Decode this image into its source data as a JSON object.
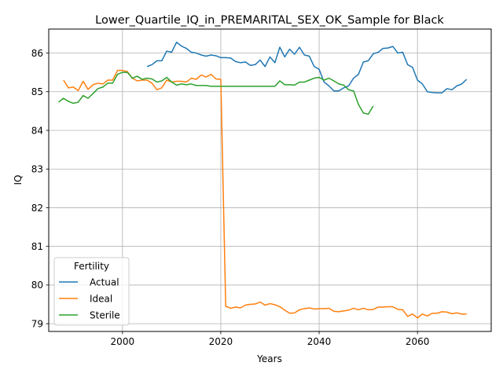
{
  "chart_data": {
    "type": "line",
    "title": "Lower_Quartile_IQ_in_PREMARITAL_SEX_OK_Sample for Black",
    "xlabel": "Years",
    "ylabel": "IQ",
    "xlim": [
      1985,
      2075
    ],
    "ylim": [
      78.8,
      86.62
    ],
    "xticks": [
      2000,
      2020,
      2040,
      2060
    ],
    "yticks": [
      79,
      80,
      81,
      82,
      83,
      84,
      85,
      86
    ],
    "grid": true,
    "legend": {
      "title": "Fertility",
      "placement": "lower left"
    },
    "series": [
      {
        "name": "Actual",
        "color": "#1f77b4",
        "x": [
          2005,
          2006,
          2007,
          2008,
          2009,
          2010,
          2011,
          2012,
          2013,
          2014,
          2015,
          2016,
          2017,
          2018,
          2019,
          2020,
          2021,
          2022,
          2023,
          2024,
          2025,
          2026,
          2027,
          2028,
          2029,
          2030,
          2031,
          2032,
          2033,
          2034,
          2035,
          2036,
          2037,
          2038,
          2039,
          2040,
          2041,
          2042,
          2043,
          2044,
          2045,
          2046,
          2047,
          2048,
          2049,
          2050,
          2051,
          2052,
          2053,
          2054,
          2055,
          2056,
          2057,
          2058,
          2059,
          2060,
          2061,
          2062,
          2063,
          2064,
          2065,
          2066,
          2067,
          2068,
          2069,
          2070
        ],
        "values": [
          85.65,
          85.7,
          85.8,
          85.8,
          86.05,
          86.02,
          86.28,
          86.18,
          86.12,
          86.02,
          86.0,
          85.95,
          85.92,
          85.95,
          85.93,
          85.88,
          85.88,
          85.87,
          85.78,
          85.75,
          85.77,
          85.68,
          85.7,
          85.82,
          85.65,
          85.9,
          85.75,
          86.15,
          85.9,
          86.1,
          85.97,
          86.15,
          85.95,
          85.92,
          85.65,
          85.58,
          85.25,
          85.15,
          85.02,
          85.02,
          85.1,
          85.15,
          85.35,
          85.45,
          85.77,
          85.8,
          85.98,
          86.02,
          86.12,
          86.13,
          86.17,
          86.0,
          86.02,
          85.7,
          85.63,
          85.3,
          85.2,
          85.0,
          84.98,
          84.97,
          84.97,
          85.08,
          85.05,
          85.15,
          85.2,
          85.32
        ]
      },
      {
        "name": "Ideal",
        "color": "#ff7f0e",
        "x": [
          1988,
          1989,
          1990,
          1991,
          1992,
          1993,
          1994,
          1995,
          1996,
          1997,
          1998,
          1999,
          2000,
          2001,
          2002,
          2003,
          2004,
          2005,
          2006,
          2007,
          2008,
          2009,
          2010,
          2011,
          2012,
          2013,
          2014,
          2015,
          2016,
          2017,
          2018,
          2019,
          2020,
          2021,
          2022,
          2023,
          2024,
          2025,
          2026,
          2027,
          2028,
          2029,
          2030,
          2031,
          2032,
          2033,
          2034,
          2035,
          2036,
          2037,
          2038,
          2039,
          2040,
          2041,
          2042,
          2043,
          2044,
          2045,
          2046,
          2047,
          2048,
          2049,
          2050,
          2051,
          2052,
          2053,
          2054,
          2055,
          2056,
          2057,
          2058,
          2059,
          2060,
          2061,
          2062,
          2063,
          2064,
          2065,
          2066,
          2067,
          2068,
          2069,
          2070
        ],
        "values": [
          85.3,
          85.1,
          85.12,
          85.03,
          85.27,
          85.06,
          85.18,
          85.22,
          85.2,
          85.3,
          85.3,
          85.55,
          85.55,
          85.52,
          85.35,
          85.28,
          85.3,
          85.3,
          85.22,
          85.05,
          85.1,
          85.3,
          85.25,
          85.27,
          85.27,
          85.25,
          85.35,
          85.32,
          85.43,
          85.38,
          85.45,
          85.33,
          85.32,
          79.45,
          79.4,
          79.43,
          79.41,
          79.48,
          79.5,
          79.51,
          79.56,
          79.48,
          79.52,
          79.49,
          79.44,
          79.35,
          79.27,
          79.28,
          79.36,
          79.39,
          79.41,
          79.38,
          79.39,
          79.39,
          79.4,
          79.32,
          79.31,
          79.33,
          79.35,
          79.4,
          79.36,
          79.4,
          79.36,
          79.37,
          79.43,
          79.43,
          79.44,
          79.44,
          79.37,
          79.36,
          79.19,
          79.25,
          79.15,
          79.25,
          79.2,
          79.27,
          79.27,
          79.31,
          79.3,
          79.26,
          79.28,
          79.25,
          79.25
        ]
      },
      {
        "name": "Sterile",
        "color": "#2ca02c",
        "x": [
          1987,
          1988,
          1989,
          1990,
          1991,
          1992,
          1993,
          1994,
          1995,
          1996,
          1997,
          1998,
          1999,
          2000,
          2001,
          2002,
          2003,
          2004,
          2005,
          2006,
          2007,
          2008,
          2009,
          2010,
          2011,
          2012,
          2013,
          2014,
          2015,
          2016,
          2017,
          2018,
          2019,
          2020,
          2021,
          2022,
          2023,
          2024,
          2025,
          2026,
          2027,
          2028,
          2029,
          2030,
          2031,
          2032,
          2033,
          2034,
          2035,
          2036,
          2037,
          2038,
          2039,
          2040,
          2041,
          2042,
          2043,
          2044,
          2045,
          2046,
          2047,
          2048,
          2049,
          2050,
          2051
        ],
        "values": [
          84.73,
          84.83,
          84.75,
          84.7,
          84.73,
          84.9,
          84.83,
          84.95,
          85.08,
          85.12,
          85.22,
          85.22,
          85.45,
          85.5,
          85.5,
          85.35,
          85.4,
          85.32,
          85.35,
          85.33,
          85.25,
          85.28,
          85.37,
          85.25,
          85.17,
          85.2,
          85.18,
          85.2,
          85.16,
          85.16,
          85.16,
          85.14,
          85.14,
          85.14,
          85.14,
          85.14,
          85.14,
          85.14,
          85.14,
          85.14,
          85.14,
          85.14,
          85.14,
          85.14,
          85.14,
          85.28,
          85.18,
          85.18,
          85.17,
          85.25,
          85.25,
          85.3,
          85.35,
          85.37,
          85.3,
          85.35,
          85.28,
          85.2,
          85.17,
          85.05,
          85.02,
          84.67,
          84.45,
          84.42,
          84.63
        ]
      }
    ]
  }
}
